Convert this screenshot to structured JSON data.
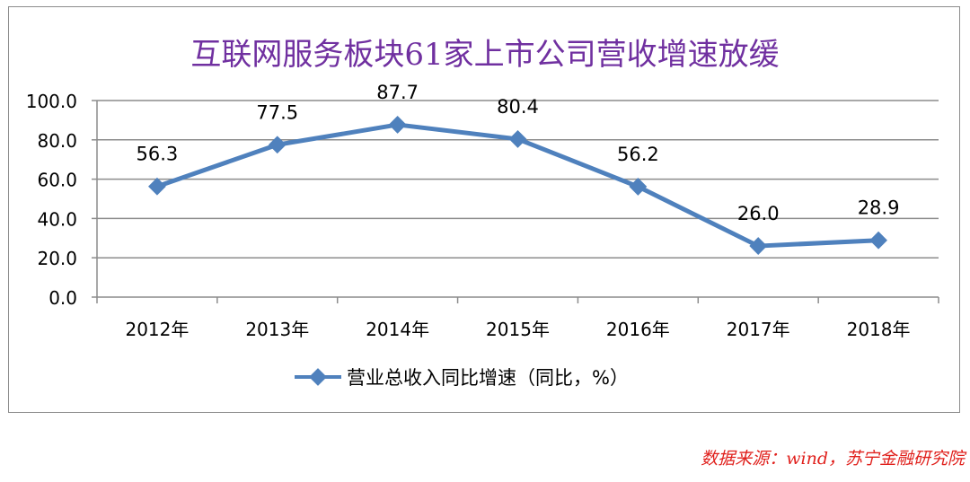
{
  "chart_data": {
    "type": "line",
    "title": "互联网服务板块61家上市公司营收增速放缓",
    "categories": [
      "2012年",
      "2013年",
      "2014年",
      "2015年",
      "2016年",
      "2017年",
      "2018年"
    ],
    "series": [
      {
        "name": "营业总收入同比增速（同比，%）",
        "values": [
          56.3,
          77.5,
          87.7,
          80.4,
          56.2,
          26.0,
          28.9
        ],
        "data_labels": [
          "56.3",
          "77.5",
          "87.7",
          "80.4",
          "56.2",
          "26.0",
          "28.9"
        ]
      }
    ],
    "y_ticks": [
      "0.0",
      "20.0",
      "40.0",
      "60.0",
      "80.0",
      "100.0"
    ],
    "ylim": [
      0,
      100
    ],
    "grid": true,
    "legend": "bottom",
    "xlabel": "",
    "ylabel": ""
  },
  "source_note": "数据来源：wind，苏宁金融研究院",
  "colors": {
    "title": "#7030a0",
    "line": "#4f81bd",
    "source": "#e0201c",
    "grid": "#8c8c8c"
  }
}
